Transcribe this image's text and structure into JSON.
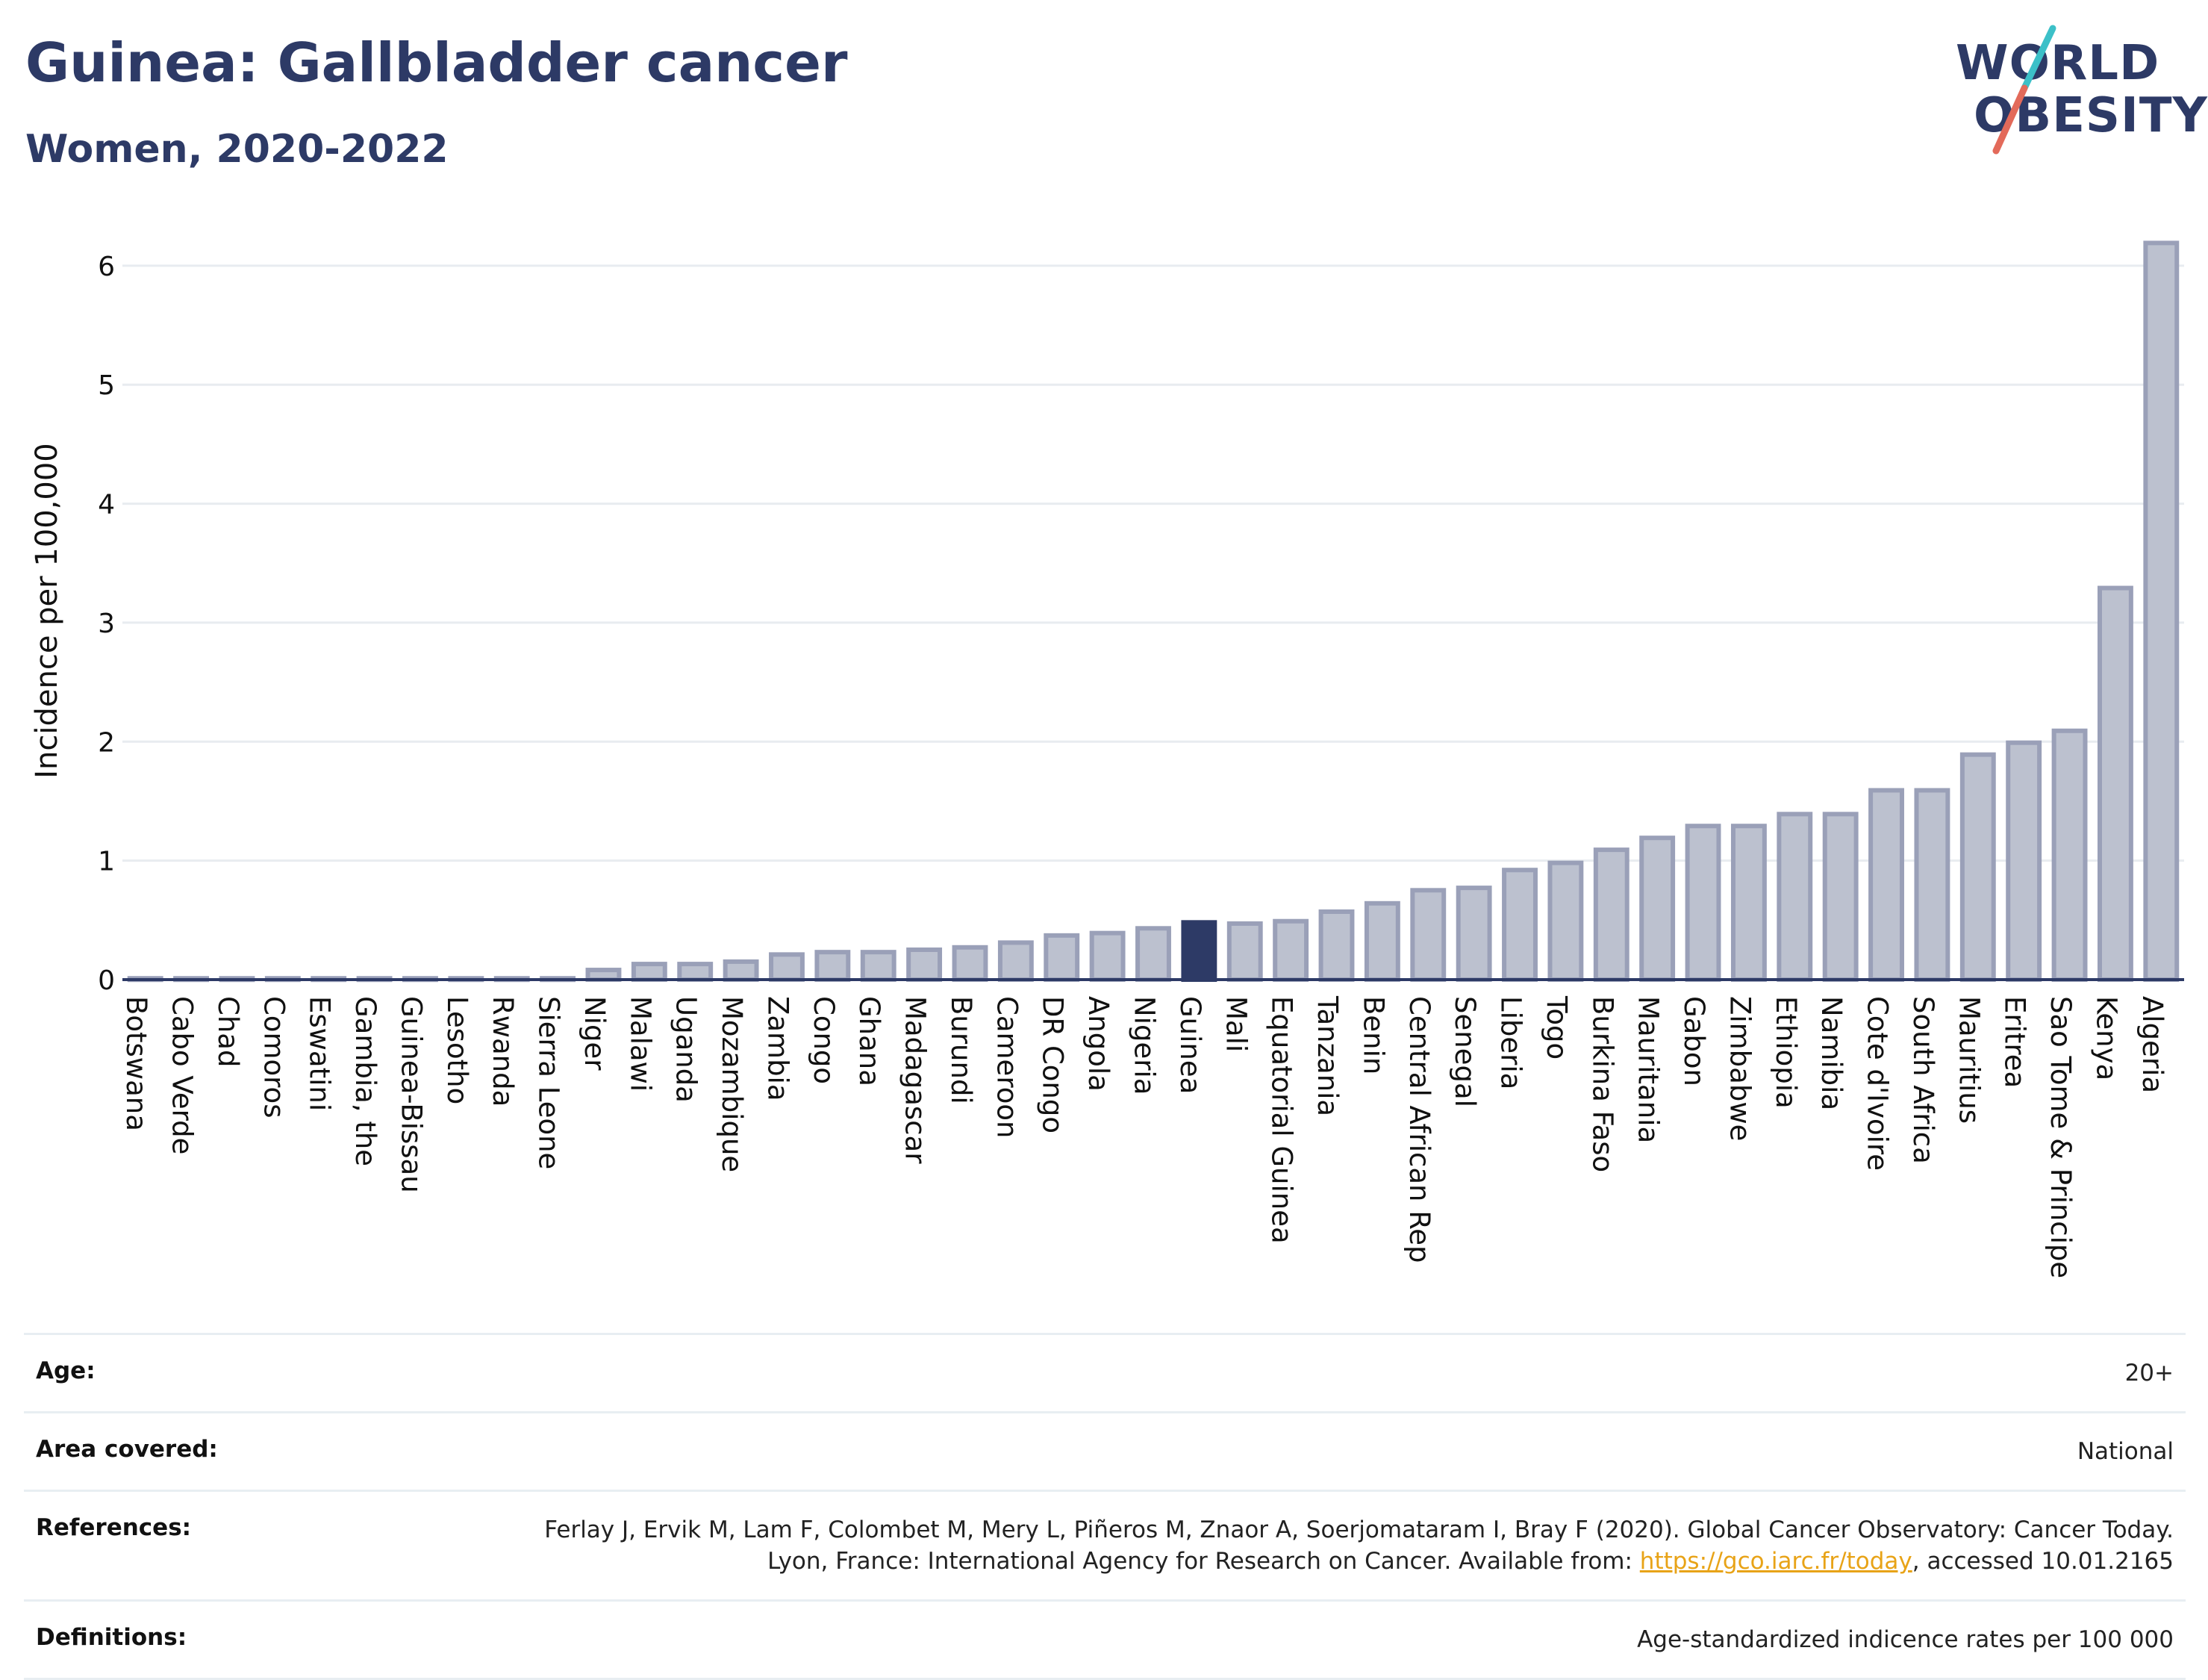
{
  "header": {
    "title": "Guinea: Gallbladder cancer",
    "subtitle": "Women, 2020-2022"
  },
  "logo": {
    "line1": "WORLD",
    "line2": "OBESITY",
    "colors": {
      "text": "#2d3a66",
      "slash_top": "#3cc0c8",
      "slash_bottom": "#e36a5a"
    }
  },
  "colors": {
    "bar_fill": "#bcc1cf",
    "bar_stroke": "#9aa0b8",
    "highlight": "#2d3a66",
    "grid": "#e8ecf0",
    "axis": "#2d3a66"
  },
  "chart_data": {
    "type": "bar",
    "ylabel": "Incidence per 100,000",
    "ylim": [
      0,
      6.2
    ],
    "yticks": [
      0,
      1,
      2,
      3,
      4,
      5,
      6
    ],
    "grid": true,
    "highlight": "Guinea",
    "categories": [
      "Botswana",
      "Cabo Verde",
      "Chad",
      "Comoros",
      "Eswatini",
      "Gambia, the",
      "Guinea-Bissau",
      "Lesotho",
      "Rwanda",
      "Sierra Leone",
      "Niger",
      "Malawi",
      "Uganda",
      "Mozambique",
      "Zambia",
      "Congo",
      "Ghana",
      "Madagascar",
      "Burundi",
      "Cameroon",
      "DR Congo",
      "Angola",
      "Nigeria",
      "Guinea",
      "Mali",
      "Equatorial Guinea",
      "Tanzania",
      "Benin",
      "Central African Rep",
      "Senegal",
      "Liberia",
      "Togo",
      "Burkina Faso",
      "Mauritania",
      "Gabon",
      "Zimbabwe",
      "Ethiopia",
      "Namibia",
      "Cote d'Ivoire",
      "South Africa",
      "Mauritius",
      "Eritrea",
      "Sao Tome & Principe",
      "Kenya",
      "Algeria"
    ],
    "values": [
      0.03,
      0.03,
      0.03,
      0.03,
      0.03,
      0.03,
      0.03,
      0.03,
      0.03,
      0.03,
      0.1,
      0.15,
      0.15,
      0.17,
      0.23,
      0.25,
      0.25,
      0.27,
      0.29,
      0.33,
      0.39,
      0.41,
      0.45,
      0.5,
      0.49,
      0.51,
      0.59,
      0.66,
      0.77,
      0.79,
      0.94,
      1.0,
      1.11,
      1.21,
      1.31,
      1.31,
      1.41,
      1.41,
      1.61,
      1.61,
      1.91,
      2.01,
      2.11,
      3.31,
      6.21
    ]
  },
  "info": {
    "age_label": "Age:",
    "age_value": "20+",
    "area_label": "Area covered:",
    "area_value": "National",
    "references_label": "References:",
    "references_text_1": "Ferlay J, Ervik M, Lam F, Colombet M, Mery L, Piñeros M, Znaor A, Soerjomataram I, Bray F (2020). Global Cancer Observatory: Cancer Today. Lyon, France: International Agency for Research on Cancer. Available from: ",
    "references_link": "https://gco.iarc.fr/today",
    "references_text_2": ", accessed 10.01.2165",
    "definitions_label": "Definitions:",
    "definitions_value": "Age-standardized indicence rates per 100 000"
  }
}
